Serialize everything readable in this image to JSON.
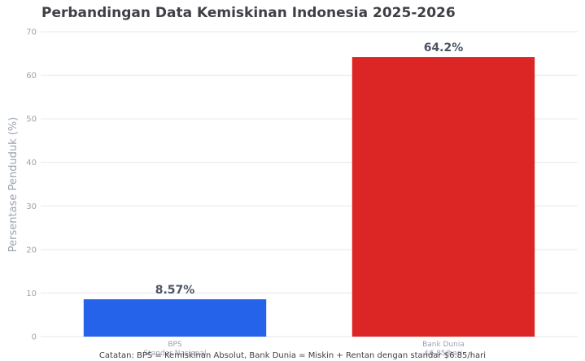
{
  "chart_data": {
    "type": "bar",
    "title": "Perbandingan Data Kemiskinan Indonesia 2025-2026",
    "ylabel": "Persentase Penduduk (%)",
    "xlabel": "",
    "ylim": [
      0,
      70
    ],
    "yticks": [
      "0",
      "10",
      "20",
      "30",
      "40",
      "50",
      "60",
      "70"
    ],
    "categories": [
      {
        "name": "BPS",
        "sublabel": "Standar Nasional"
      },
      {
        "name": "Bank Dunia",
        "sublabel": "$6.85/hari"
      }
    ],
    "values": [
      8.57,
      64.2
    ],
    "value_labels": [
      "8.57%",
      "64.2%"
    ],
    "colors": [
      "#2563eb",
      "#dc2626"
    ],
    "grid": true,
    "legend": "none",
    "footnote": "Catatan: BPS = Kemiskinan Absolut, Bank Dunia = Miskin + Rentan dengan standar $6.85/hari"
  }
}
